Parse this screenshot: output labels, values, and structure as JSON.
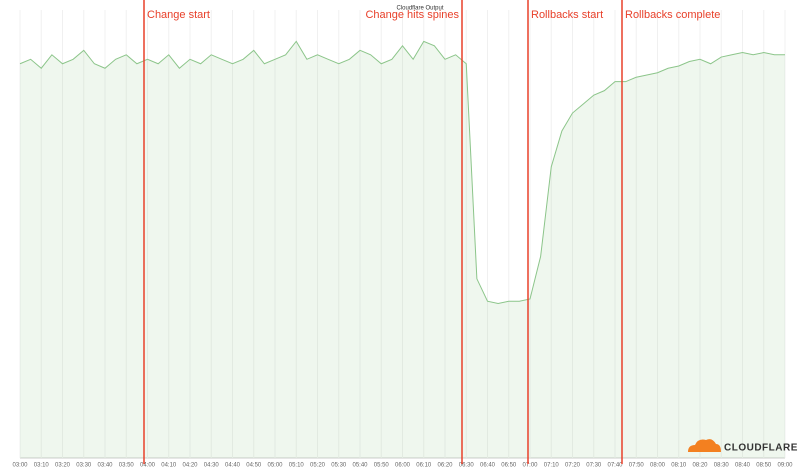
{
  "chart_data": {
    "type": "area",
    "title": "Cloudflare Output",
    "logo": "CLOUDFLARE",
    "categories": [
      "03:00",
      null,
      "03:10",
      null,
      "03:20",
      null,
      "03:30",
      null,
      "03:40",
      null,
      "03:50",
      null,
      "04:00",
      null,
      "04:10",
      null,
      "04:20",
      null,
      "04:30",
      null,
      "04:40",
      null,
      "04:50",
      null,
      "05:00",
      null,
      "05:10",
      null,
      "05:20",
      null,
      "05:30",
      null,
      "05:40",
      null,
      "05:50",
      null,
      "06:00",
      null,
      "06:10",
      null,
      "06:20",
      null,
      "06:30",
      null,
      "06:40",
      null,
      "06:50",
      null,
      "07:00",
      null,
      "07:10",
      null,
      "07:20",
      null,
      "07:30",
      null,
      "07:40",
      null,
      "07:50",
      null,
      "08:00",
      null,
      "08:10",
      null,
      "08:20",
      null,
      "08:30",
      null,
      "08:40",
      null,
      "08:50",
      null,
      "09:00"
    ],
    "values": [
      88,
      89,
      87,
      90,
      88,
      89,
      91,
      88,
      87,
      89,
      90,
      88,
      89,
      88,
      90,
      87,
      89,
      88,
      90,
      89,
      88,
      89,
      91,
      88,
      89,
      90,
      93,
      89,
      90,
      89,
      88,
      89,
      91,
      90,
      88,
      89,
      92,
      89,
      93,
      92,
      89,
      90,
      88,
      40,
      35,
      34.5,
      35,
      35,
      35.5,
      45,
      65,
      73,
      77,
      79,
      81,
      82,
      84,
      84,
      85,
      85.5,
      86,
      87,
      87.5,
      88.5,
      89,
      88,
      89.5,
      90,
      90.5,
      90,
      90.5,
      90,
      90
    ],
    "color": "#8cc58a",
    "ylim": [
      0,
      100
    ],
    "annotations": [
      "Change start",
      "Change hits spines",
      "Rollbacks start",
      "Rollbacks complete"
    ],
    "annotation_color": "#e8402a"
  }
}
